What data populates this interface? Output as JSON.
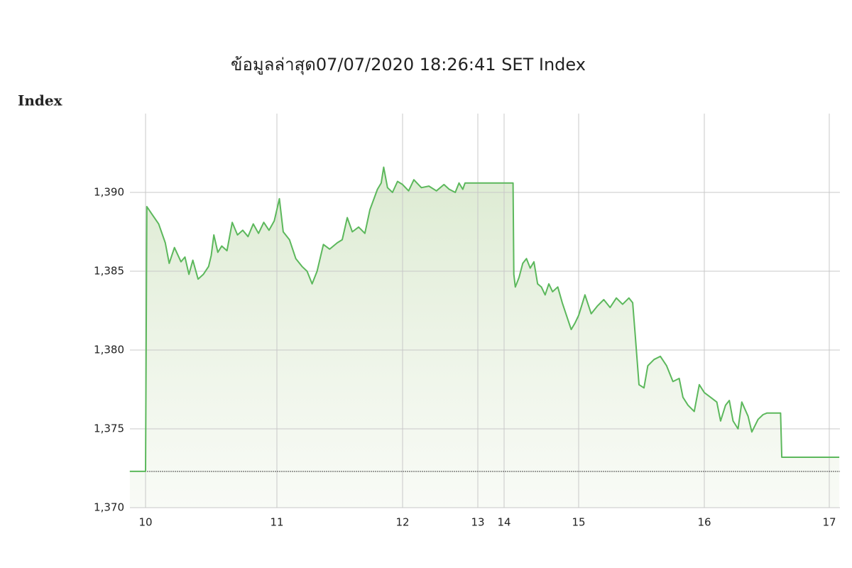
{
  "chart_data": {
    "type": "line",
    "title": "ข้อมูลล่าสุด07/07/2020 18:26:41  SET Index",
    "y_label": "Index",
    "color": "#5cb85c",
    "grid": true,
    "previous_close": 1372.3,
    "xlim": [
      9.88,
      17.08
    ],
    "xticks": [
      10,
      11,
      12,
      13,
      14,
      15,
      16,
      17
    ],
    "ylim": [
      1370,
      1395
    ],
    "yticks": [
      {
        "value": 1370,
        "label": "1,370"
      },
      {
        "value": 1375,
        "label": "1,375"
      },
      {
        "value": 1380,
        "label": "1,380"
      },
      {
        "value": 1385,
        "label": "1,385"
      },
      {
        "value": 1390,
        "label": "1,390"
      }
    ],
    "x": [
      9.88,
      10.0,
      10.01,
      10.05,
      10.1,
      10.15,
      10.18,
      10.22,
      10.27,
      10.3,
      10.33,
      10.36,
      10.4,
      10.44,
      10.48,
      10.5,
      10.52,
      10.55,
      10.58,
      10.62,
      10.66,
      10.7,
      10.74,
      10.78,
      10.82,
      10.86,
      10.9,
      10.94,
      10.98,
      11.02,
      11.05,
      11.1,
      11.15,
      11.2,
      11.24,
      11.28,
      11.32,
      11.37,
      11.42,
      11.48,
      11.52,
      11.56,
      11.6,
      11.65,
      11.7,
      11.74,
      11.8,
      11.83,
      11.85,
      11.88,
      11.92,
      11.96,
      12.0,
      12.08,
      12.15,
      12.25,
      12.35,
      12.45,
      12.55,
      12.62,
      12.7,
      12.75,
      12.8,
      12.83,
      14.12,
      14.13,
      14.15,
      14.2,
      14.25,
      14.3,
      14.35,
      14.4,
      14.45,
      14.5,
      14.55,
      14.6,
      14.65,
      14.72,
      14.78,
      14.85,
      14.9,
      14.95,
      15.0,
      15.05,
      15.1,
      15.15,
      15.2,
      15.25,
      15.3,
      15.35,
      15.4,
      15.43,
      15.45,
      15.48,
      15.52,
      15.55,
      15.6,
      15.65,
      15.7,
      15.75,
      15.8,
      15.83,
      15.87,
      15.92,
      15.96,
      16.0,
      16.05,
      16.1,
      16.13,
      16.17,
      16.2,
      16.23,
      16.27,
      16.3,
      16.35,
      16.38,
      16.43,
      16.47,
      16.5,
      16.61,
      16.62,
      17.08
    ],
    "values": [
      1372.3,
      1372.3,
      1389.1,
      1388.6,
      1388.0,
      1386.8,
      1385.5,
      1386.5,
      1385.6,
      1385.9,
      1384.8,
      1385.7,
      1384.5,
      1384.8,
      1385.3,
      1386.0,
      1387.3,
      1386.2,
      1386.6,
      1386.3,
      1388.1,
      1387.3,
      1387.6,
      1387.2,
      1388.0,
      1387.4,
      1388.1,
      1387.6,
      1388.2,
      1389.6,
      1387.5,
      1387.0,
      1385.8,
      1385.3,
      1385.0,
      1384.2,
      1385.0,
      1386.7,
      1386.4,
      1386.8,
      1387.0,
      1388.4,
      1387.5,
      1387.8,
      1387.4,
      1388.9,
      1390.2,
      1390.6,
      1391.6,
      1390.3,
      1390.0,
      1390.7,
      1390.5,
      1390.1,
      1390.8,
      1390.3,
      1390.4,
      1390.1,
      1390.5,
      1390.2,
      1390.0,
      1390.6,
      1390.2,
      1390.6,
      1390.6,
      1384.8,
      1384.0,
      1384.6,
      1385.5,
      1385.8,
      1385.2,
      1385.6,
      1384.2,
      1384.0,
      1383.5,
      1384.2,
      1383.7,
      1384.0,
      1383.0,
      1382.0,
      1381.3,
      1381.7,
      1382.2,
      1383.5,
      1382.3,
      1382.8,
      1383.2,
      1382.7,
      1383.3,
      1382.9,
      1383.3,
      1383.0,
      1381.0,
      1377.8,
      1377.6,
      1379.0,
      1379.4,
      1379.6,
      1379.0,
      1378.0,
      1378.2,
      1377.0,
      1376.5,
      1376.1,
      1377.8,
      1377.3,
      1377.0,
      1376.7,
      1375.5,
      1376.5,
      1376.8,
      1375.5,
      1375.0,
      1376.7,
      1375.8,
      1374.8,
      1375.6,
      1375.9,
      1376.0,
      1376.0,
      1373.2,
      1373.2
    ]
  }
}
